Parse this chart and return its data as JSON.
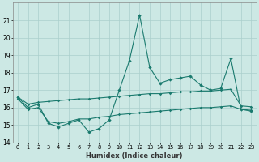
{
  "xlabel": "Humidex (Indice chaleur)",
  "x": [
    0,
    1,
    2,
    3,
    4,
    5,
    6,
    7,
    8,
    9,
    10,
    11,
    12,
    13,
    14,
    15,
    16,
    17,
    18,
    19,
    20,
    21,
    22,
    23
  ],
  "y_main": [
    16.6,
    16.0,
    16.2,
    15.1,
    14.9,
    15.1,
    15.3,
    14.6,
    14.8,
    15.3,
    17.0,
    18.7,
    21.3,
    18.3,
    17.4,
    17.6,
    17.7,
    17.8,
    17.3,
    17.0,
    17.1,
    18.8,
    15.9,
    15.8
  ],
  "y_upper": [
    16.6,
    16.2,
    16.3,
    16.35,
    16.4,
    16.45,
    16.5,
    16.5,
    16.55,
    16.6,
    16.65,
    16.7,
    16.75,
    16.8,
    16.8,
    16.85,
    16.9,
    16.9,
    16.95,
    16.95,
    17.0,
    17.05,
    16.1,
    16.05
  ],
  "y_lower": [
    16.5,
    15.9,
    16.0,
    15.2,
    15.1,
    15.2,
    15.35,
    15.35,
    15.45,
    15.5,
    15.6,
    15.65,
    15.7,
    15.75,
    15.8,
    15.85,
    15.9,
    15.95,
    16.0,
    16.0,
    16.05,
    16.1,
    15.9,
    15.85
  ],
  "line_color": "#1a7a6e",
  "bg_color": "#cce8e4",
  "grid_color": "#aacfcc",
  "ylim": [
    14,
    22
  ],
  "yticks": [
    14,
    15,
    16,
    17,
    18,
    19,
    20,
    21
  ],
  "xlim": [
    -0.5,
    23.5
  ]
}
